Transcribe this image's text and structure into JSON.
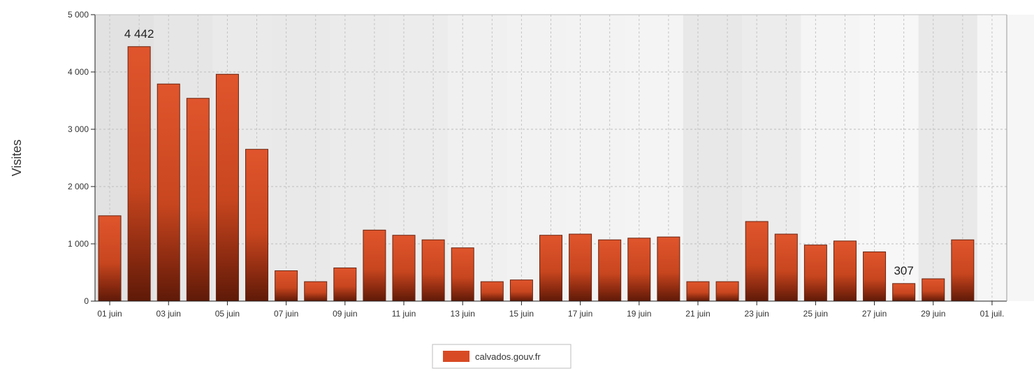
{
  "chart_data": {
    "type": "bar",
    "ylabel": "Visites",
    "ylim": [
      0,
      5000
    ],
    "yticks": [
      "0",
      "1 000",
      "2 000",
      "3 000",
      "4 000",
      "5 000"
    ],
    "xticks": [
      "01 juin",
      "03 juin",
      "05 juin",
      "07 juin",
      "09 juin",
      "11 juin",
      "13 juin",
      "15 juin",
      "17 juin",
      "19 juin",
      "21 juin",
      "23 juin",
      "25 juin",
      "27 juin",
      "29 juin",
      "01 juil."
    ],
    "categories": [
      "01 juin",
      "02 juin",
      "03 juin",
      "04 juin",
      "05 juin",
      "06 juin",
      "07 juin",
      "08 juin",
      "09 juin",
      "10 juin",
      "11 juin",
      "12 juin",
      "13 juin",
      "14 juin",
      "15 juin",
      "16 juin",
      "17 juin",
      "18 juin",
      "19 juin",
      "20 juin",
      "21 juin",
      "22 juin",
      "23 juin",
      "24 juin",
      "25 juin",
      "26 juin",
      "27 juin",
      "28 juin",
      "29 juin",
      "30 juin"
    ],
    "series": [
      {
        "name": "calvados.gouv.fr",
        "color": "#d84a24",
        "values": [
          1490,
          4442,
          3790,
          3540,
          3960,
          2650,
          530,
          340,
          580,
          1240,
          1150,
          1070,
          930,
          340,
          370,
          1150,
          1170,
          1070,
          1100,
          1120,
          340,
          340,
          1390,
          1170,
          980,
          1050,
          860,
          307,
          390,
          1070
        ]
      }
    ],
    "data_labels": [
      {
        "index": 1,
        "text": "4 442"
      },
      {
        "index": 27,
        "text": "307"
      }
    ],
    "grid": true,
    "legend_position": "bottom"
  }
}
